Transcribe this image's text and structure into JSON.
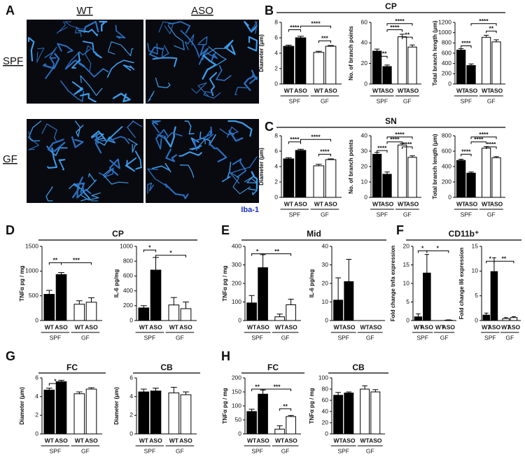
{
  "panels": [
    {
      "letter": "A",
      "columns": [
        "WT",
        "ASO"
      ],
      "rows": [
        "SPF",
        "GF"
      ],
      "stain": "Iba-1"
    },
    {
      "letter": "B",
      "title": "CP"
    },
    {
      "letter": "C",
      "title": "SN"
    },
    {
      "letter": "D",
      "title": "CP"
    },
    {
      "letter": "E",
      "title": "Mid"
    },
    {
      "letter": "F",
      "title": "CD11b⁺"
    },
    {
      "letter": "G"
    },
    {
      "letter": "H"
    }
  ],
  "chart_data": [
    {
      "type": "bar",
      "y_label": "Diameter (μm)",
      "categories": [
        "WT",
        "ASO",
        "WT",
        "ASO"
      ],
      "groups": [
        "SPF",
        "GF"
      ],
      "values": [
        4.9,
        6.0,
        4.1,
        4.9
      ],
      "errors": [
        0.15,
        0.2,
        0.15,
        0.1
      ],
      "bar_colors": [
        "#000000",
        "#000000",
        "#ffffff",
        "#ffffff"
      ],
      "ylim": [
        0,
        8
      ],
      "yticks": [
        0,
        2,
        4,
        6,
        8
      ],
      "annotations": [
        "****",
        "****",
        "***"
      ]
    },
    {
      "type": "bar",
      "y_label": "No. of branch points",
      "categories": [
        "WT",
        "ASO",
        "WT",
        "ASO"
      ],
      "groups": [
        "SPF",
        "GF"
      ],
      "values": [
        32,
        17,
        46,
        36
      ],
      "errors": [
        2,
        1.5,
        2.5,
        2
      ],
      "bar_colors": [
        "#000000",
        "#000000",
        "#ffffff",
        "#ffffff"
      ],
      "ylim": [
        0,
        60
      ],
      "yticks": [
        0,
        20,
        40,
        60
      ],
      "annotations": [
        "****",
        "****",
        "**",
        "****"
      ]
    },
    {
      "type": "bar",
      "y_label": "Total branch length (μm)",
      "categories": [
        "WT",
        "ASO",
        "WT",
        "ASO"
      ],
      "groups": [
        "SPF",
        "GF"
      ],
      "values": [
        660,
        360,
        910,
        820
      ],
      "errors": [
        30,
        30,
        40,
        40
      ],
      "bar_colors": [
        "#000000",
        "#000000",
        "#ffffff",
        "#ffffff"
      ],
      "ylim": [
        0,
        1200
      ],
      "yticks": [
        0,
        200,
        400,
        600,
        800,
        1000,
        1200
      ],
      "annotations": [
        "****",
        "****",
        "**"
      ]
    },
    {
      "type": "bar",
      "y_label": "Diameter (μm)",
      "categories": [
        "WT",
        "ASO",
        "WT",
        "ASO"
      ],
      "groups": [
        "SPF",
        "GF"
      ],
      "values": [
        5.0,
        6.1,
        4.1,
        4.9
      ],
      "errors": [
        0.15,
        0.15,
        0.2,
        0.1
      ],
      "bar_colors": [
        "#000000",
        "#000000",
        "#ffffff",
        "#ffffff"
      ],
      "ylim": [
        0,
        8
      ],
      "yticks": [
        0,
        2,
        4,
        6,
        8
      ],
      "annotations": [
        "****",
        "****",
        "****"
      ]
    },
    {
      "type": "bar",
      "y_label": "No. of branch points",
      "categories": [
        "WT",
        "ASO",
        "WT",
        "ASO"
      ],
      "groups": [
        "SPF",
        "GF"
      ],
      "values": [
        28,
        15,
        34,
        26
      ],
      "errors": [
        1.2,
        1.5,
        1,
        1
      ],
      "bar_colors": [
        "#000000",
        "#000000",
        "#ffffff",
        "#ffffff"
      ],
      "ylim": [
        0,
        40
      ],
      "yticks": [
        0,
        10,
        20,
        30,
        40
      ],
      "annotations": [
        "****",
        "****",
        "****",
        "****"
      ]
    },
    {
      "type": "bar",
      "y_label": "Total branch length (μm)",
      "categories": [
        "WT",
        "ASO",
        "WT",
        "ASO"
      ],
      "groups": [
        "SPF",
        "GF"
      ],
      "values": [
        480,
        315,
        640,
        515
      ],
      "errors": [
        15,
        15,
        20,
        15
      ],
      "bar_colors": [
        "#000000",
        "#000000",
        "#ffffff",
        "#ffffff"
      ],
      "ylim": [
        0,
        800
      ],
      "yticks": [
        0,
        200,
        400,
        600,
        800
      ],
      "annotations": [
        "****",
        "****",
        "****",
        "****"
      ]
    },
    {
      "type": "bar",
      "y_label": "TNFα pg / mg",
      "categories": [
        "WT",
        "ASO",
        "WT",
        "ASO"
      ],
      "groups": [
        "SPF",
        "GF"
      ],
      "values": [
        530,
        930,
        330,
        370
      ],
      "errors": [
        80,
        40,
        70,
        90
      ],
      "bar_colors": [
        "#000000",
        "#000000",
        "#ffffff",
        "#ffffff"
      ],
      "ylim": [
        0,
        1500
      ],
      "yticks": [
        0,
        500,
        1000,
        1500
      ],
      "annotations": [
        "**",
        "***"
      ]
    },
    {
      "type": "bar",
      "y_label": "IL-6 pg/mg",
      "categories": [
        "WT",
        "ASO",
        "WT",
        "ASO"
      ],
      "groups": [
        "SPF",
        "GF"
      ],
      "values": [
        170,
        680,
        210,
        160
      ],
      "errors": [
        30,
        170,
        100,
        90
      ],
      "bar_colors": [
        "#000000",
        "#000000",
        "#ffffff",
        "#ffffff"
      ],
      "ylim": [
        0,
        1000
      ],
      "yticks": [
        0,
        200,
        400,
        600,
        800,
        1000
      ],
      "annotations": [
        "*",
        "*"
      ]
    },
    {
      "type": "bar",
      "y_label": "TNFα pg / mg",
      "categories": [
        "WT",
        "ASO",
        "WT",
        "ASO"
      ],
      "groups": [
        "SPF",
        "GF"
      ],
      "values": [
        95,
        285,
        20,
        85
      ],
      "errors": [
        40,
        70,
        15,
        30
      ],
      "bar_colors": [
        "#000000",
        "#000000",
        "#ffffff",
        "#ffffff"
      ],
      "ylim": [
        0,
        400
      ],
      "yticks": [
        0,
        100,
        200,
        300,
        400
      ],
      "annotations": [
        "*",
        "**"
      ]
    },
    {
      "type": "bar",
      "y_label": "IL-6 pg/mg",
      "categories": [
        "WT",
        "ASO",
        "WT",
        "ASO"
      ],
      "groups": [
        "SPF",
        "GF"
      ],
      "values": [
        11,
        21,
        0,
        0
      ],
      "errors": [
        12,
        12,
        0,
        0
      ],
      "bar_colors": [
        "#000000",
        "#000000",
        "#ffffff",
        "#ffffff"
      ],
      "ylim": [
        0,
        40
      ],
      "yticks": [
        0,
        10,
        20,
        30,
        40
      ],
      "annotations": []
    },
    {
      "type": "bar",
      "y_label": "Fold change tnfa expression",
      "categories": [
        "WT",
        "ASO",
        "WT",
        "ASO"
      ],
      "groups": [
        "SPF",
        "GF"
      ],
      "values": [
        1.0,
        12.8,
        0,
        0.1
      ],
      "errors": [
        0.8,
        5,
        0,
        0.1
      ],
      "bar_colors": [
        "#000000",
        "#000000",
        "#ffffff",
        "#ffffff"
      ],
      "ylim": [
        0,
        20
      ],
      "yticks": [
        0,
        5,
        10,
        15,
        20
      ],
      "annotations": [
        "*",
        "*"
      ]
    },
    {
      "type": "bar",
      "y_label": "Fold change Il6 expression",
      "categories": [
        "WT",
        "ASO",
        "WT",
        "ASO"
      ],
      "groups": [
        "SPF",
        "GF"
      ],
      "values": [
        1.1,
        9.9,
        0.4,
        0.6
      ],
      "errors": [
        0.4,
        2.8,
        0.2,
        0.2
      ],
      "bar_colors": [
        "#000000",
        "#000000",
        "#ffffff",
        "#ffffff"
      ],
      "ylim": [
        0,
        15
      ],
      "yticks": [
        0,
        5,
        10,
        15
      ],
      "annotations": [
        "*",
        "**"
      ]
    },
    {
      "type": "bar",
      "title": "FC",
      "y_label": "Diameter (μm)",
      "categories": [
        "WT",
        "ASO",
        "WT",
        "ASO"
      ],
      "groups": [
        "SPF",
        "GF"
      ],
      "values": [
        4.7,
        5.6,
        4.3,
        4.8
      ],
      "errors": [
        0.2,
        0.15,
        0.2,
        0.15
      ],
      "bar_colors": [
        "#000000",
        "#000000",
        "#ffffff",
        "#ffffff"
      ],
      "ylim": [
        0,
        6
      ],
      "yticks": [
        0,
        2,
        4,
        6
      ],
      "annotations": [
        "*"
      ]
    },
    {
      "type": "bar",
      "title": "CB",
      "y_label": "Diameter (μm)",
      "categories": [
        "WT",
        "ASO",
        "WT",
        "ASO"
      ],
      "groups": [
        "SPF",
        "GF"
      ],
      "values": [
        4.5,
        4.6,
        4.4,
        4.2
      ],
      "errors": [
        0.3,
        0.3,
        0.6,
        0.3
      ],
      "bar_colors": [
        "#000000",
        "#000000",
        "#ffffff",
        "#ffffff"
      ],
      "ylim": [
        0,
        6
      ],
      "yticks": [
        0,
        2,
        4,
        6
      ],
      "annotations": []
    },
    {
      "type": "bar",
      "title": "FC",
      "y_label": "TNFα pg / mg",
      "categories": [
        "WT",
        "ASO",
        "WT",
        "ASO"
      ],
      "groups": [
        "SPF",
        "GF"
      ],
      "values": [
        80,
        142,
        17,
        62
      ],
      "errors": [
        8,
        15,
        12,
        4
      ],
      "bar_colors": [
        "#000000",
        "#000000",
        "#ffffff",
        "#ffffff"
      ],
      "ylim": [
        0,
        200
      ],
      "yticks": [
        0,
        50,
        100,
        150,
        200
      ],
      "annotations": [
        "**",
        "***",
        "**"
      ]
    },
    {
      "type": "bar",
      "title": "CB",
      "y_label": "TNFα pg / mg",
      "categories": [
        "WT",
        "ASO",
        "WT",
        "ASO"
      ],
      "groups": [
        "SPF",
        "GF"
      ],
      "values": [
        69,
        73,
        80,
        75
      ],
      "errors": [
        5,
        2,
        6,
        4
      ],
      "bar_colors": [
        "#000000",
        "#000000",
        "#ffffff",
        "#ffffff"
      ],
      "ylim": [
        0,
        100
      ],
      "yticks": [
        0,
        20,
        40,
        60,
        80,
        100
      ],
      "annotations": []
    }
  ]
}
